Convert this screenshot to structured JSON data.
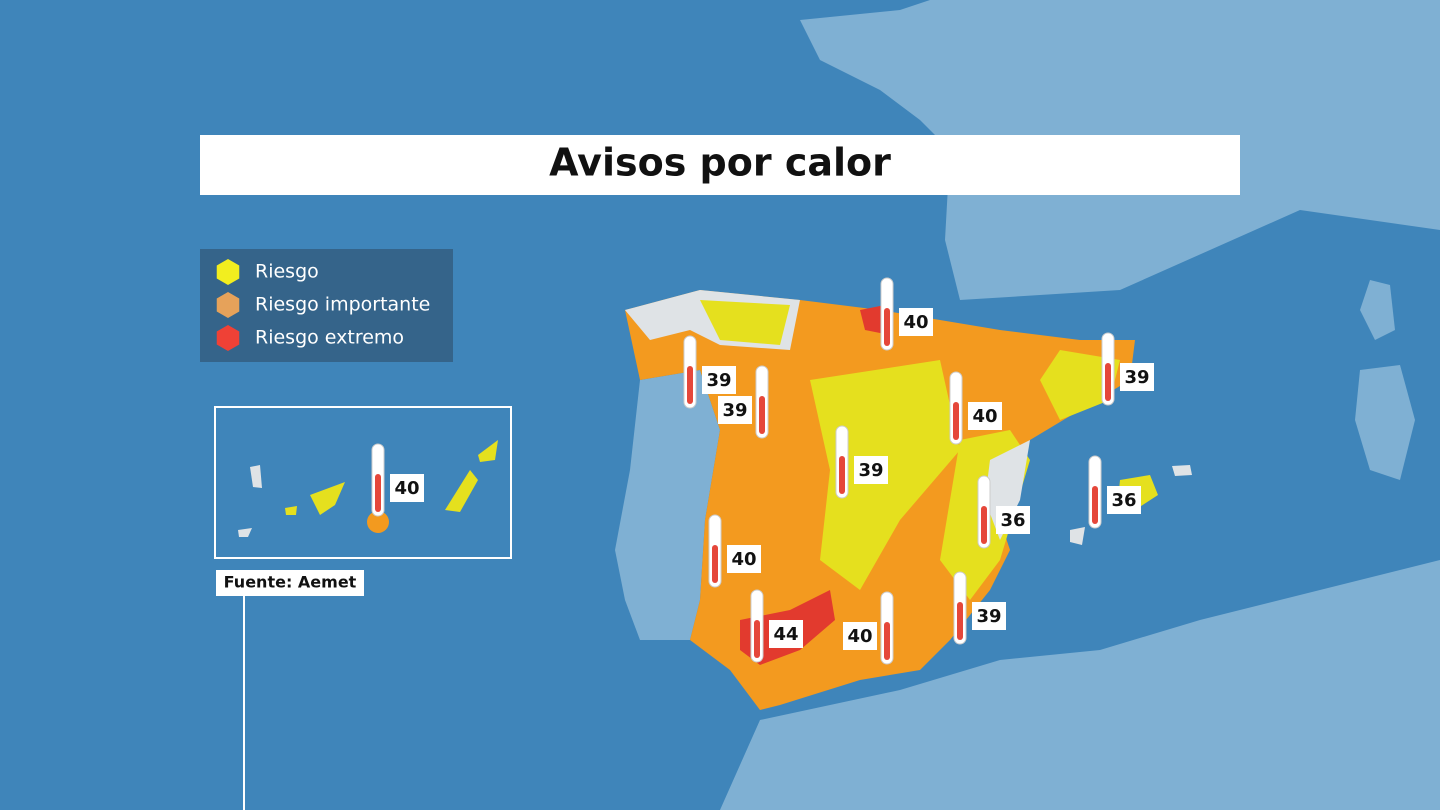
{
  "title": "Avisos por calor",
  "legend": [
    {
      "label": "Riesgo",
      "color": "#f2ee1f"
    },
    {
      "label": "Riesgo importante",
      "color": "#e6a25a"
    },
    {
      "label": "Riesgo extremo",
      "color": "#ef4136"
    }
  ],
  "source": "Fuente: Aemet",
  "markers": [
    40,
    39,
    39,
    40,
    39,
    39,
    36,
    36,
    40,
    44,
    40,
    39,
    40
  ]
}
